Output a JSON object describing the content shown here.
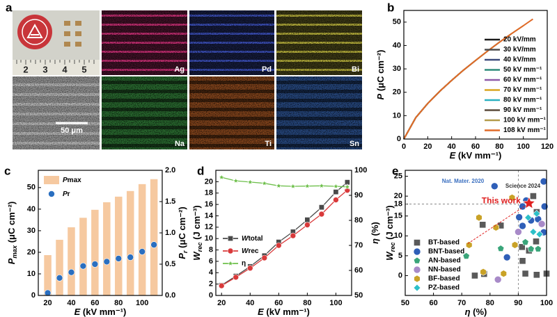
{
  "panel_a": {
    "label": "a",
    "ruler": [
      "2",
      "3",
      "4",
      "5"
    ],
    "scale_bar": "50 μm",
    "maps": [
      {
        "element": "Ag",
        "color": "#d8327e"
      },
      {
        "element": "Pd",
        "color": "#3f55c8"
      },
      {
        "element": "Bi",
        "color": "#c8c040"
      },
      {
        "element": "Na",
        "color": "#3fa84a"
      },
      {
        "element": "Ti",
        "color": "#d06a2a"
      },
      {
        "element": "Sn",
        "color": "#3a70c8"
      }
    ]
  },
  "chart_data": [
    {
      "panel": "b",
      "type": "line",
      "xlabel": [
        "E",
        " (kV mm⁻¹)"
      ],
      "ylabel": [
        "P",
        " (μC cm⁻²)"
      ],
      "xlim": [
        0,
        120
      ],
      "xticks": [
        0,
        20,
        40,
        60,
        80,
        100,
        120
      ],
      "ylim": [
        0,
        55
      ],
      "yticks": [
        0,
        10,
        20,
        30,
        40,
        50
      ],
      "legend": "lower right",
      "series": [
        {
          "name": "20 kV/mm",
          "color": "#1a1a1a",
          "x": [
            0,
            10,
            20
          ],
          "values": [
            0,
            9.2,
            15.2
          ]
        },
        {
          "name": "30 kV/mm",
          "color": "#4d4d4d",
          "x": [
            0,
            10,
            20,
            30
          ],
          "values": [
            0,
            9.2,
            15.2,
            20.4
          ]
        },
        {
          "name": "40 kV/mm",
          "color": "#3b4a7a",
          "x": [
            0,
            10,
            20,
            30,
            40
          ],
          "values": [
            0,
            9.2,
            15.2,
            20.4,
            25.1
          ]
        },
        {
          "name": "50 kV mm⁻¹",
          "color": "#2e8b7a",
          "x": [
            0,
            10,
            20,
            30,
            40,
            50
          ],
          "values": [
            0,
            9.2,
            15.2,
            20.4,
            25.1,
            29.5
          ]
        },
        {
          "name": "60 kV mm⁻¹",
          "color": "#8e5aa8",
          "x": [
            0,
            10,
            20,
            30,
            40,
            50,
            60
          ],
          "values": [
            0,
            9.2,
            15.2,
            20.4,
            25.1,
            29.5,
            33.6
          ]
        },
        {
          "name": "70 kV mm⁻¹",
          "color": "#d9a520",
          "x": [
            0,
            10,
            20,
            30,
            40,
            50,
            60,
            70
          ],
          "values": [
            0,
            9.2,
            15.2,
            20.4,
            25.1,
            29.5,
            33.6,
            37.6
          ]
        },
        {
          "name": "80 kV mm⁻¹",
          "color": "#2ab0c0",
          "x": [
            0,
            10,
            20,
            30,
            40,
            50,
            60,
            70,
            80
          ],
          "values": [
            0,
            9.2,
            15.2,
            20.4,
            25.1,
            29.5,
            33.6,
            37.6,
            41.4
          ]
        },
        {
          "name": "90 kV mm⁻¹",
          "color": "#5a4a3a",
          "x": [
            0,
            10,
            20,
            30,
            40,
            50,
            60,
            70,
            80,
            90
          ],
          "values": [
            0,
            9.2,
            15.2,
            20.4,
            25.1,
            29.5,
            33.6,
            37.6,
            41.4,
            45
          ]
        },
        {
          "name": "100 kV mm⁻¹",
          "color": "#b39b4a",
          "x": [
            0,
            10,
            20,
            30,
            40,
            50,
            60,
            70,
            80,
            90,
            100
          ],
          "values": [
            0,
            9.2,
            15.2,
            20.4,
            25.1,
            29.5,
            33.6,
            37.6,
            41.4,
            45,
            48.5
          ]
        },
        {
          "name": "108 kV mm⁻¹",
          "color": "#e06a28",
          "x": [
            0,
            10,
            20,
            30,
            40,
            50,
            60,
            70,
            80,
            90,
            100,
            108
          ],
          "values": [
            0,
            9.2,
            15.2,
            20.4,
            25.1,
            29.5,
            33.6,
            37.6,
            41.4,
            45,
            48.5,
            51.3
          ]
        }
      ]
    },
    {
      "panel": "c",
      "type": "combo",
      "x": [
        20,
        30,
        40,
        50,
        60,
        70,
        80,
        90,
        100,
        110
      ],
      "xlabel": [
        "E",
        " (kV mm⁻¹)"
      ],
      "ylabel": [
        "P",
        "max",
        " (μC cm⁻²)"
      ],
      "y2label": [
        "P",
        "r",
        " (μC cm⁻²)"
      ],
      "xlim": [
        12,
        117
      ],
      "xticks": [
        20,
        40,
        60,
        80,
        100
      ],
      "ylim": [
        0,
        58
      ],
      "yticks": [
        0,
        10,
        20,
        30,
        40,
        50
      ],
      "y2lim": [
        0,
        2
      ],
      "y2ticks": [
        {
          "value": 0,
          "label": "0.0"
        },
        0.5,
        {
          "value": 1,
          "label": "1.0"
        },
        1.5,
        {
          "value": 2,
          "label": "2.0"
        }
      ],
      "legend": "upper left",
      "series": [
        {
          "name": [
            "P",
            "max"
          ],
          "type": "bar",
          "color": "#f6c9a0",
          "values": [
            18.7,
            25.8,
            31.6,
            36,
            39.7,
            43.2,
            45.8,
            48.4,
            51.6,
            53.9
          ]
        },
        {
          "name": [
            "P",
            "r"
          ],
          "type": "scatter",
          "marker": "circle",
          "axis": "y2",
          "color": "#2a6fc0",
          "values": [
            0.04,
            0.28,
            0.37,
            0.47,
            0.5,
            0.54,
            0.59,
            0.61,
            0.7,
            0.81
          ]
        }
      ]
    },
    {
      "panel": "d",
      "type": "line",
      "x": [
        20,
        30,
        40,
        50,
        60,
        70,
        80,
        90,
        100,
        108
      ],
      "xlabel": [
        "E",
        " (kV mm⁻¹)"
      ],
      "ylabel": [
        "W",
        "rec",
        " (J cm⁻³)"
      ],
      "y2label": [
        "η",
        " (%)"
      ],
      "xlim": [
        16,
        111
      ],
      "xticks": [
        20,
        40,
        60,
        80,
        100
      ],
      "ylim": [
        0,
        22
      ],
      "yticks": [
        0,
        2,
        4,
        6,
        8,
        10,
        12,
        14,
        16,
        18,
        20
      ],
      "y2lim": [
        50,
        100
      ],
      "y2ticks": [
        50,
        60,
        70,
        80,
        90,
        100
      ],
      "legend": "center left",
      "series": [
        {
          "name": [
            "W",
            "total"
          ],
          "marker": "square",
          "color": "#4a4a4a",
          "values": [
            1.8,
            3.4,
            5.1,
            7,
            9.4,
            11.2,
            13.3,
            15.5,
            18.2,
            19.9
          ]
        },
        {
          "name": [
            "W",
            "rec"
          ],
          "marker": "circle",
          "color": "#d9393a",
          "values": [
            1.7,
            3.2,
            4.8,
            6.6,
            8.8,
            10.5,
            12.4,
            14.3,
            16.8,
            18.5
          ]
        },
        {
          "name": "η",
          "marker": "star",
          "axis": "y2",
          "color": "#6dbf4a",
          "values": [
            97.2,
            95.8,
            95.3,
            94.8,
            93.8,
            93.6,
            93.7,
            93.8,
            93.6,
            93.4
          ]
        }
      ]
    },
    {
      "panel": "e",
      "type": "scatter",
      "xlabel": [
        "η",
        " (%)"
      ],
      "ylabel": [
        "W",
        "rec",
        " (J cm⁻³)"
      ],
      "xlim": [
        50,
        100
      ],
      "xticks": [
        50,
        60,
        70,
        80,
        90,
        100
      ],
      "ylim": [
        -5,
        26.5
      ],
      "yticks": [
        0,
        5,
        10,
        15,
        18,
        20,
        25
      ],
      "ref_lines": {
        "x": 90,
        "y": 18
      },
      "legend": "lower left",
      "annotations": [
        {
          "text": "Nat. Mater. 2020",
          "color": "#3a6fc0"
        },
        {
          "text": "Science 2024",
          "color": "#333333"
        }
      ],
      "highlight": {
        "name": "This work",
        "x": 93.8,
        "y": 18.2,
        "color": "#e02020"
      },
      "series": [
        {
          "name": "BT-based",
          "marker": "square",
          "color": "#5a5a5a",
          "x": [
            77.4,
            74.6,
            77.9,
            83.8,
            91.3,
            92.5,
            96.3,
            96.5,
            100,
            95.3,
            96.5,
            93.8,
            91.5
          ],
          "values": [
            12.8,
            0,
            0.4,
            12.6,
            7.2,
            0.5,
            8.6,
            0.2,
            0.5,
            20,
            16,
            6.3,
            3.7
          ]
        },
        {
          "name": "BNT-based",
          "marker": "circle",
          "color": "#2f5fb8",
          "x": [
            81.6,
            99,
            90.3,
            91.5,
            94.5,
            99.3,
            97,
            86,
            99,
            92.8,
            91.5
          ],
          "values": [
            22.5,
            23.7,
            14.7,
            12.5,
            13.9,
            17.4,
            14.2,
            4.6,
            10.9,
            18.9,
            17.4
          ]
        },
        {
          "name": "AN-based",
          "marker": "pentagon",
          "color": "#3aa57a",
          "x": [
            71.6,
            83.8,
            97,
            92.5,
            94.5
          ],
          "values": [
            4.9,
            6.8,
            6.7,
            8.4,
            6.7
          ]
        },
        {
          "name": "NN-based",
          "marker": "circle",
          "color": "#a88ac8",
          "x": [
            90,
            98.3,
            82.8
          ],
          "values": [
            11,
            13,
            -1
          ]
        },
        {
          "name": "BF-based",
          "marker": "hexagon",
          "color": "#c9a227",
          "x": [
            72.6,
            76.1,
            82.1,
            87.8,
            88.8,
            84.8,
            77.6
          ],
          "values": [
            7.7,
            14.6,
            12.1,
            19.6,
            7.7,
            0.5,
            0.9
          ]
        },
        {
          "name": "PZ-based",
          "marker": "diamond",
          "color": "#2cc0c8",
          "x": [
            95.3,
            93.5,
            96.5,
            97.5
          ],
          "values": [
            11,
            14.6,
            15.6,
            10.4
          ]
        }
      ]
    }
  ]
}
